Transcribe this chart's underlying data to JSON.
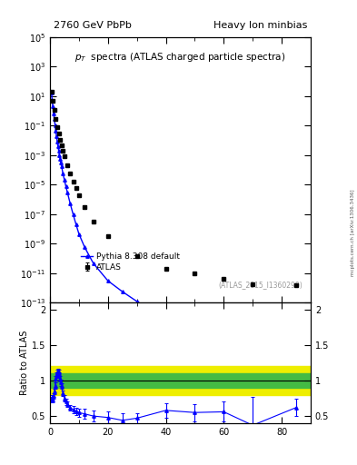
{
  "title_left": "2760 GeV PbPb",
  "title_right": "Heavy Ion minbias",
  "watermark": "(ATLAS_2015_I1360290)",
  "side_label": "mcplots.cern.ch [arXiv:1306.3436]",
  "ylabel_ratio": "Ratio to ATLAS",
  "xlim": [
    0,
    90
  ],
  "legend_entries": [
    "ATLAS",
    "Pythia 8.308 default"
  ],
  "atlas_pt": [
    0.5,
    1.0,
    1.5,
    2.0,
    2.5,
    3.0,
    3.5,
    4.0,
    4.5,
    5.0,
    6.0,
    7.0,
    8.0,
    9.0,
    10.0,
    12.0,
    15.0,
    20.0,
    30.0,
    40.0,
    50.0,
    60.0,
    70.0,
    85.0
  ],
  "atlas_y": [
    20.0,
    5.0,
    1.1,
    0.28,
    0.08,
    0.028,
    0.011,
    0.0045,
    0.002,
    0.0009,
    0.0002,
    5.5e-05,
    1.6e-05,
    5.5e-06,
    2e-06,
    3.2e-07,
    3.2e-08,
    3e-09,
    1.5e-10,
    2e-11,
    9e-12,
    4e-12,
    1.8e-12,
    1.5e-12
  ],
  "atlas_yerr": [
    2.0,
    0.5,
    0.11,
    0.028,
    0.008,
    0.0028,
    0.0011,
    0.00045,
    0.0002,
    9e-05,
    2e-05,
    5.5e-06,
    1.6e-06,
    5.5e-07,
    2e-07,
    3.2e-08,
    3.2e-09,
    3e-10,
    1.5e-11,
    2e-12,
    9e-13,
    4e-13,
    1.8e-13,
    1.5e-13
  ],
  "pythia_pt": [
    0.5,
    0.75,
    1.0,
    1.25,
    1.5,
    1.75,
    2.0,
    2.25,
    2.5,
    2.75,
    3.0,
    3.25,
    3.5,
    3.75,
    4.0,
    4.5,
    5.0,
    5.5,
    6.0,
    7.0,
    8.0,
    9.0,
    10.0,
    12.0,
    15.0,
    20.0,
    25.0,
    30.0,
    35.0,
    40.0,
    50.0,
    60.0,
    70.0,
    85.0
  ],
  "pythia_y": [
    18.0,
    5.5,
    2.0,
    0.7,
    0.28,
    0.11,
    0.045,
    0.019,
    0.0085,
    0.004,
    0.002,
    0.001,
    0.00055,
    0.0003,
    0.00017,
    5.5e-05,
    2e-05,
    7.5e-06,
    3e-06,
    5e-07,
    9.5e-08,
    2e-08,
    4.5e-09,
    5.5e-10,
    4.5e-11,
    3e-12,
    5.5e-13,
    1.2e-13,
    3e-14,
    8.5e-15,
    9e-16,
    2.5e-16,
    9e-17,
    3.5e-17
  ],
  "ratio_pt": [
    0.5,
    0.75,
    1.0,
    1.25,
    1.5,
    1.75,
    2.0,
    2.25,
    2.5,
    2.75,
    3.0,
    3.25,
    3.5,
    3.75,
    4.0,
    4.5,
    5.0,
    5.5,
    6.0,
    7.0,
    8.0,
    9.0,
    10.0,
    12.0,
    15.0,
    20.0,
    25.0,
    30.0,
    40.0,
    50.0,
    60.0,
    70.0,
    85.0
  ],
  "ratio_y": [
    0.75,
    0.73,
    0.73,
    0.78,
    0.85,
    0.93,
    1.02,
    1.08,
    1.12,
    1.13,
    1.12,
    1.08,
    1.03,
    0.97,
    0.92,
    0.82,
    0.75,
    0.7,
    0.67,
    0.62,
    0.59,
    0.57,
    0.55,
    0.53,
    0.5,
    0.48,
    0.44,
    0.47,
    0.58,
    0.55,
    0.56,
    0.37,
    0.62
  ],
  "ratio_yerr": [
    0.04,
    0.04,
    0.04,
    0.04,
    0.04,
    0.04,
    0.04,
    0.04,
    0.04,
    0.04,
    0.04,
    0.04,
    0.04,
    0.04,
    0.04,
    0.04,
    0.04,
    0.04,
    0.04,
    0.04,
    0.05,
    0.05,
    0.06,
    0.07,
    0.08,
    0.09,
    0.1,
    0.07,
    0.1,
    0.12,
    0.14,
    0.4,
    0.12
  ],
  "band_green_lo": 0.9,
  "band_green_hi": 1.1,
  "band_yellow_lo": 0.8,
  "band_yellow_hi": 1.2,
  "color_data": "black",
  "color_pythia": "blue",
  "color_green": "#44bb44",
  "color_yellow": "#eeee00",
  "marker_data": "s",
  "marker_pythia": "^"
}
